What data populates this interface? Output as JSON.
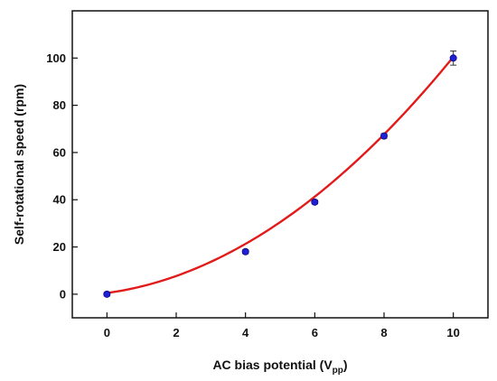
{
  "chart_data": {
    "type": "scatter",
    "xlabel_main": "AC bias potential  (V",
    "xlabel_sub": "pp",
    "xlabel_close": ")",
    "ylabel": "Self-rotational speed (rpm)",
    "xlim": [
      -1,
      11
    ],
    "ylim": [
      -10,
      120
    ],
    "xticks": [
      0,
      2,
      4,
      6,
      8,
      10
    ],
    "yticks": [
      0,
      20,
      40,
      60,
      80,
      100
    ],
    "grid": false,
    "series": [
      {
        "marker_color": "#1f1fd6",
        "points": [
          {
            "x": 0,
            "y": 0,
            "err": 0.8
          },
          {
            "x": 4,
            "y": 18,
            "err": 0.8
          },
          {
            "x": 6,
            "y": 39,
            "err": 0.8
          },
          {
            "x": 8,
            "y": 67,
            "err": 1.0
          },
          {
            "x": 10,
            "y": 100,
            "err": 3.0
          }
        ]
      }
    ],
    "fit": {
      "type": "quadratic",
      "color": "#e31a1a",
      "coefficients": {
        "a": 0.8,
        "b": 2.0,
        "c": 0.5
      },
      "x_range": [
        0,
        10
      ]
    }
  }
}
